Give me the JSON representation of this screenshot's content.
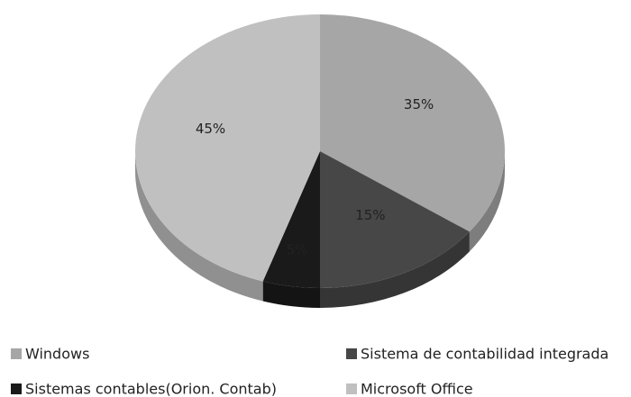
{
  "chart_data": {
    "type": "pie",
    "categories": [
      "Windows",
      "Sistema de contabilidad integrada",
      "Sistemas contables(Orion. Contab)",
      "Microsoft Office"
    ],
    "values": [
      35,
      15,
      5,
      45
    ],
    "value_labels": [
      "35%",
      "15%",
      "5%",
      "45%"
    ],
    "colors": [
      "#a6a6a6",
      "#474747",
      "#1a1a1a",
      "#c0c0c0"
    ],
    "legend": "bottom"
  }
}
